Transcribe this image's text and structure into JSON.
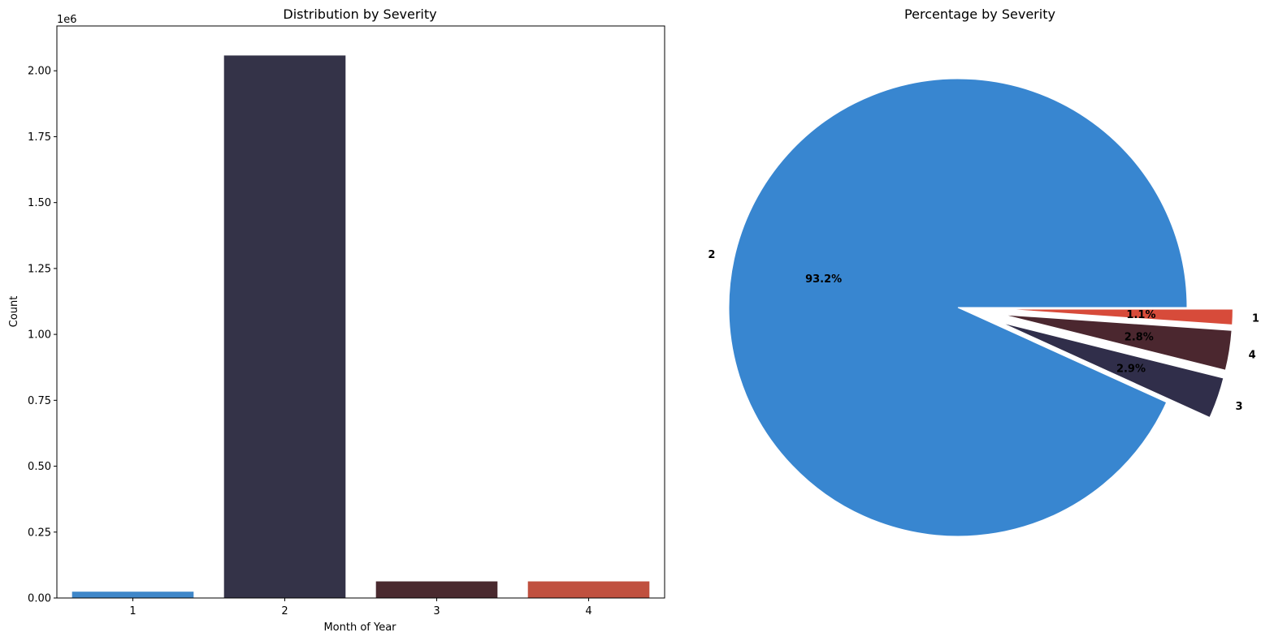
{
  "chart_data": [
    {
      "type": "bar",
      "title": "Distribution by Severity",
      "xlabel": "Month of Year",
      "ylabel": "Count",
      "y_offset_label": "1e6",
      "categories": [
        "1",
        "2",
        "3",
        "4"
      ],
      "values": [
        24000,
        2058000,
        63000,
        63000
      ],
      "colors": [
        "#3f87c9",
        "#343348",
        "#4a2a2f",
        "#c0503f"
      ],
      "ylim": [
        0,
        2170000
      ],
      "yticks": [
        0,
        250000,
        500000,
        750000,
        1000000,
        1250000,
        1500000,
        1750000,
        2000000
      ],
      "ytick_labels": [
        "0.00",
        "0.25",
        "0.50",
        "0.75",
        "1.00",
        "1.25",
        "1.50",
        "1.75",
        "2.00"
      ],
      "grid": false
    },
    {
      "type": "pie",
      "title": "Percentage by Severity",
      "labels": [
        "2",
        "3",
        "4",
        "1"
      ],
      "values": [
        93.2,
        2.9,
        2.8,
        1.1
      ],
      "pct_labels": [
        "93.2%",
        "2.9%",
        "2.8%",
        "1.1%"
      ],
      "colors": [
        "#3886d0",
        "#302e4a",
        "#4b272f",
        "#d74b3a"
      ],
      "exploded": [
        false,
        true,
        true,
        true
      ]
    }
  ]
}
